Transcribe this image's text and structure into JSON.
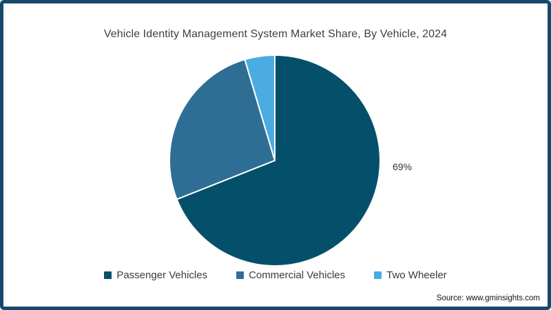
{
  "frame": {
    "border_color": "#15496B",
    "background": "#FFFFFF"
  },
  "chart_data": {
    "type": "pie",
    "title": "Vehicle Identity Management System Market Share, By Vehicle, 2024",
    "unit": "%",
    "start_angle_deg": 0,
    "direction": "clockwise",
    "legend_position": "bottom",
    "separator_color": "#FFFFFF",
    "slices": [
      {
        "id": "passenger-vehicles",
        "label": "Passenger Vehicles",
        "value": 69,
        "value_label": "69%",
        "color": "#04506A"
      },
      {
        "id": "commercial-vehicles",
        "label": "Commercial Vehicles",
        "value": 26.4,
        "color": "#2F6E94"
      },
      {
        "id": "two-wheeler",
        "label": "Two Wheeler",
        "value": 4.6,
        "color": "#4BACE2"
      }
    ]
  },
  "source_note": "Source: www.gminsights.com"
}
